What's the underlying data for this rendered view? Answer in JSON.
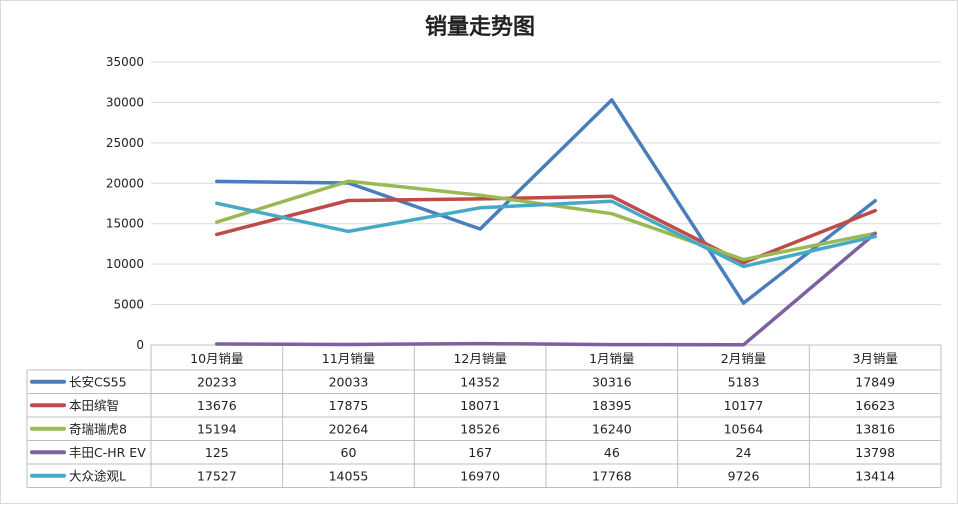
{
  "chart_data": {
    "type": "line",
    "title": "销量走势图",
    "categories": [
      "10月销量",
      "11月销量",
      "12月销量",
      "1月销量",
      "2月销量",
      "3月销量"
    ],
    "ylim": [
      0,
      35000
    ],
    "yticks": [
      "35000",
      "30000",
      "25000",
      "20000",
      "15000",
      "10000",
      "5000",
      "0"
    ],
    "grid": true,
    "legend": "data-table",
    "series": [
      {
        "name": "长安CS55",
        "color": "#4a7ebb",
        "values": [
          20233,
          20033,
          14352,
          30316,
          5183,
          17849
        ]
      },
      {
        "name": "本田缤智",
        "color": "#be4b48",
        "values": [
          13676,
          17875,
          18071,
          18395,
          10177,
          16623
        ]
      },
      {
        "name": "奇瑞瑞虎8",
        "color": "#98b954",
        "values": [
          15194,
          20264,
          18526,
          16240,
          10564,
          13816
        ]
      },
      {
        "name": "丰田C-HR EV",
        "color": "#7d60a0",
        "values": [
          125,
          60,
          167,
          46,
          24,
          13798
        ]
      },
      {
        "name": "大众途观L",
        "color": "#46aac5",
        "values": [
          17527,
          14055,
          16970,
          17768,
          9726,
          13414
        ]
      }
    ]
  }
}
